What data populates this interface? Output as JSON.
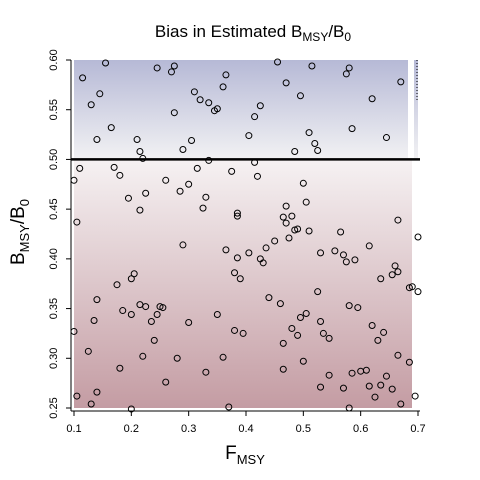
{
  "chart_data": {
    "type": "scatter",
    "title": {
      "main": "Bias in Estimated B",
      "sub1": "MSY",
      "slash": "/B",
      "sub2": "0"
    },
    "xlabel": {
      "main": "F",
      "sub": "MSY"
    },
    "ylabel": {
      "main": "B",
      "sub1": "MSY",
      "slash": "/B",
      "sub2": "0"
    },
    "xlim": [
      0.1,
      0.7
    ],
    "ylim": [
      0.25,
      0.6
    ],
    "x_ticks": [
      "0.1",
      "0.2",
      "0.3",
      "0.4",
      "0.5",
      "0.6",
      "0.7"
    ],
    "y_ticks": [
      "0.25",
      "0.30",
      "0.35",
      "0.40",
      "0.45",
      "0.50",
      "0.55",
      "0.60"
    ],
    "reference_line": 0.5,
    "colors": {
      "over_estimate": "#b6b9d6",
      "under_estimate": "#c49ca3",
      "neutral": "#f2f2f2",
      "reference": "#000000",
      "points": "#000000"
    },
    "points": [
      [
        0.115,
        0.582
      ],
      [
        0.13,
        0.555
      ],
      [
        0.14,
        0.52
      ],
      [
        0.145,
        0.566
      ],
      [
        0.155,
        0.597
      ],
      [
        0.165,
        0.532
      ],
      [
        0.275,
        0.594
      ],
      [
        0.27,
        0.588
      ],
      [
        0.31,
        0.568
      ],
      [
        0.32,
        0.56
      ],
      [
        0.335,
        0.557
      ],
      [
        0.345,
        0.549
      ],
      [
        0.35,
        0.551
      ],
      [
        0.36,
        0.573
      ],
      [
        0.365,
        0.585
      ],
      [
        0.245,
        0.592
      ],
      [
        0.21,
        0.52
      ],
      [
        0.215,
        0.508
      ],
      [
        0.22,
        0.501
      ],
      [
        0.275,
        0.547
      ],
      [
        0.29,
        0.51
      ],
      [
        0.305,
        0.519
      ],
      [
        0.335,
        0.499
      ],
      [
        0.405,
        0.524
      ],
      [
        0.415,
        0.543
      ],
      [
        0.425,
        0.554
      ],
      [
        0.415,
        0.497
      ],
      [
        0.455,
        0.598
      ],
      [
        0.47,
        0.577
      ],
      [
        0.485,
        0.508
      ],
      [
        0.495,
        0.564
      ],
      [
        0.51,
        0.527
      ],
      [
        0.515,
        0.594
      ],
      [
        0.52,
        0.516
      ],
      [
        0.525,
        0.509
      ],
      [
        0.575,
        0.586
      ],
      [
        0.58,
        0.592
      ],
      [
        0.585,
        0.531
      ],
      [
        0.62,
        0.561
      ],
      [
        0.645,
        0.522
      ],
      [
        0.67,
        0.578
      ],
      [
        0.1,
        0.479
      ],
      [
        0.105,
        0.437
      ],
      [
        0.11,
        0.491
      ],
      [
        0.17,
        0.492
      ],
      [
        0.18,
        0.484
      ],
      [
        0.195,
        0.461
      ],
      [
        0.215,
        0.449
      ],
      [
        0.225,
        0.466
      ],
      [
        0.26,
        0.479
      ],
      [
        0.285,
        0.468
      ],
      [
        0.3,
        0.475
      ],
      [
        0.315,
        0.491
      ],
      [
        0.325,
        0.451
      ],
      [
        0.33,
        0.462
      ],
      [
        0.375,
        0.488
      ],
      [
        0.385,
        0.446
      ],
      [
        0.385,
        0.443
      ],
      [
        0.42,
        0.483
      ],
      [
        0.465,
        0.442
      ],
      [
        0.47,
        0.453
      ],
      [
        0.47,
        0.436
      ],
      [
        0.48,
        0.443
      ],
      [
        0.485,
        0.429
      ],
      [
        0.5,
        0.476
      ],
      [
        0.505,
        0.457
      ],
      [
        0.565,
        0.427
      ],
      [
        0.57,
        0.404
      ],
      [
        0.575,
        0.397
      ],
      [
        0.665,
        0.439
      ],
      [
        0.7,
        0.422
      ],
      [
        0.175,
        0.374
      ],
      [
        0.185,
        0.348
      ],
      [
        0.2,
        0.38
      ],
      [
        0.205,
        0.385
      ],
      [
        0.215,
        0.354
      ],
      [
        0.225,
        0.352
      ],
      [
        0.235,
        0.337
      ],
      [
        0.245,
        0.344
      ],
      [
        0.25,
        0.352
      ],
      [
        0.255,
        0.351
      ],
      [
        0.29,
        0.414
      ],
      [
        0.365,
        0.409
      ],
      [
        0.38,
        0.386
      ],
      [
        0.385,
        0.401
      ],
      [
        0.39,
        0.38
      ],
      [
        0.405,
        0.406
      ],
      [
        0.425,
        0.4
      ],
      [
        0.43,
        0.396
      ],
      [
        0.435,
        0.411
      ],
      [
        0.45,
        0.418
      ],
      [
        0.475,
        0.421
      ],
      [
        0.49,
        0.43
      ],
      [
        0.51,
        0.428
      ],
      [
        0.53,
        0.406
      ],
      [
        0.555,
        0.408
      ],
      [
        0.59,
        0.399
      ],
      [
        0.615,
        0.413
      ],
      [
        0.635,
        0.38
      ],
      [
        0.655,
        0.384
      ],
      [
        0.66,
        0.393
      ],
      [
        0.665,
        0.387
      ],
      [
        0.685,
        0.371
      ],
      [
        0.69,
        0.372
      ],
      [
        0.7,
        0.367
      ],
      [
        0.14,
        0.359
      ],
      [
        0.135,
        0.338
      ],
      [
        0.2,
        0.344
      ],
      [
        0.22,
        0.302
      ],
      [
        0.24,
        0.318
      ],
      [
        0.26,
        0.276
      ],
      [
        0.28,
        0.3
      ],
      [
        0.3,
        0.336
      ],
      [
        0.35,
        0.344
      ],
      [
        0.36,
        0.301
      ],
      [
        0.38,
        0.328
      ],
      [
        0.395,
        0.325
      ],
      [
        0.44,
        0.361
      ],
      [
        0.46,
        0.355
      ],
      [
        0.465,
        0.315
      ],
      [
        0.48,
        0.33
      ],
      [
        0.49,
        0.323
      ],
      [
        0.495,
        0.341
      ],
      [
        0.505,
        0.345
      ],
      [
        0.525,
        0.367
      ],
      [
        0.53,
        0.337
      ],
      [
        0.535,
        0.325
      ],
      [
        0.545,
        0.32
      ],
      [
        0.58,
        0.353
      ],
      [
        0.595,
        0.351
      ],
      [
        0.62,
        0.333
      ],
      [
        0.63,
        0.318
      ],
      [
        0.64,
        0.326
      ],
      [
        0.665,
        0.303
      ],
      [
        0.685,
        0.296
      ],
      [
        0.1,
        0.327
      ],
      [
        0.125,
        0.307
      ],
      [
        0.105,
        0.262
      ],
      [
        0.13,
        0.254
      ],
      [
        0.14,
        0.266
      ],
      [
        0.18,
        0.29
      ],
      [
        0.2,
        0.249
      ],
      [
        0.33,
        0.286
      ],
      [
        0.37,
        0.251
      ],
      [
        0.465,
        0.289
      ],
      [
        0.5,
        0.297
      ],
      [
        0.53,
        0.271
      ],
      [
        0.545,
        0.283
      ],
      [
        0.57,
        0.27
      ],
      [
        0.585,
        0.285
      ],
      [
        0.6,
        0.287
      ],
      [
        0.61,
        0.288
      ],
      [
        0.615,
        0.272
      ],
      [
        0.625,
        0.261
      ],
      [
        0.635,
        0.273
      ],
      [
        0.645,
        0.282
      ],
      [
        0.655,
        0.269
      ],
      [
        0.67,
        0.254
      ],
      [
        0.695,
        0.262
      ],
      [
        0.58,
        0.25
      ]
    ]
  }
}
